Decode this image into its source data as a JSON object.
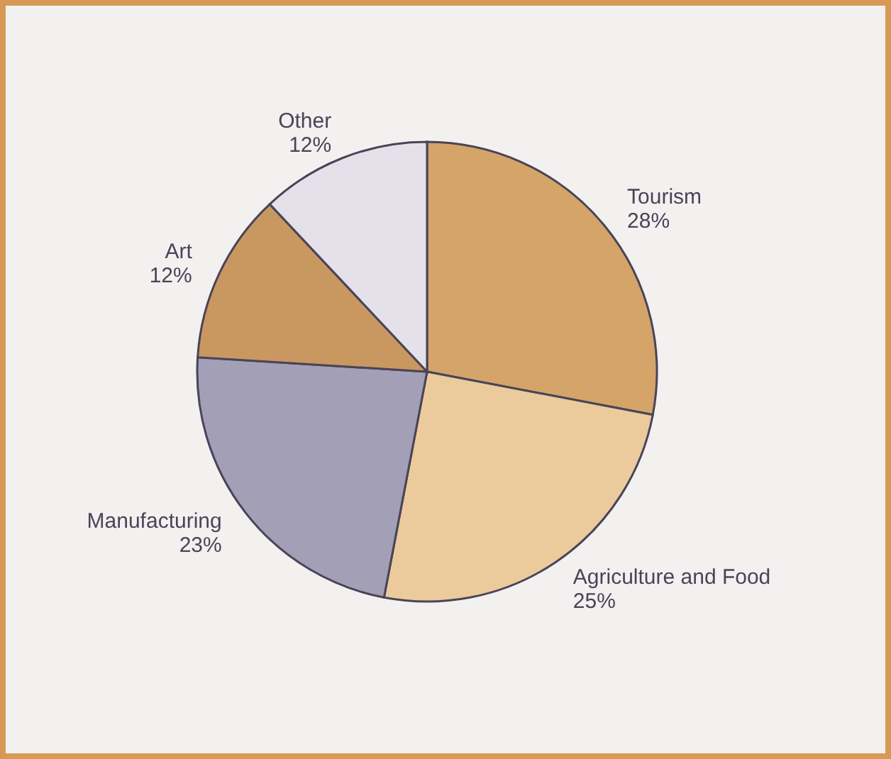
{
  "chart_data": {
    "type": "pie",
    "categories": [
      "Tourism",
      "Agriculture and Food",
      "Manufacturing",
      "Art",
      "Other"
    ],
    "values": [
      28,
      25,
      23,
      12,
      12
    ],
    "value_labels": [
      "28%",
      "25%",
      "23%",
      "12%",
      "12%"
    ],
    "colors": [
      "#d4a469",
      "#ebcb9c",
      "#a39fb6",
      "#c99860",
      "#e4e1ea"
    ]
  }
}
